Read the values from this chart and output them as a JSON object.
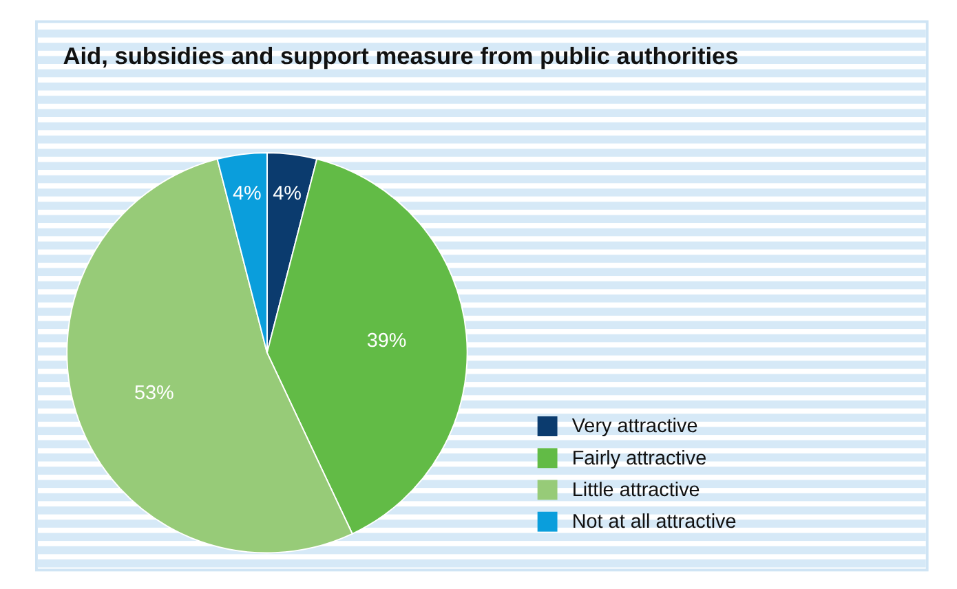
{
  "chart_data": {
    "type": "pie",
    "title": "Aid, subsidies and support measure from public authorities",
    "categories": [
      "Very attractive",
      "Fairly attractive",
      "Little attractive",
      "Not at all attractive"
    ],
    "values": [
      4,
      39,
      53,
      4
    ],
    "colors": [
      "#0b3b6e",
      "#62bb46",
      "#97cb78",
      "#0a9edc"
    ],
    "value_labels": [
      "4%",
      "39%",
      "53%",
      "4%"
    ],
    "legend": "bottom right"
  }
}
